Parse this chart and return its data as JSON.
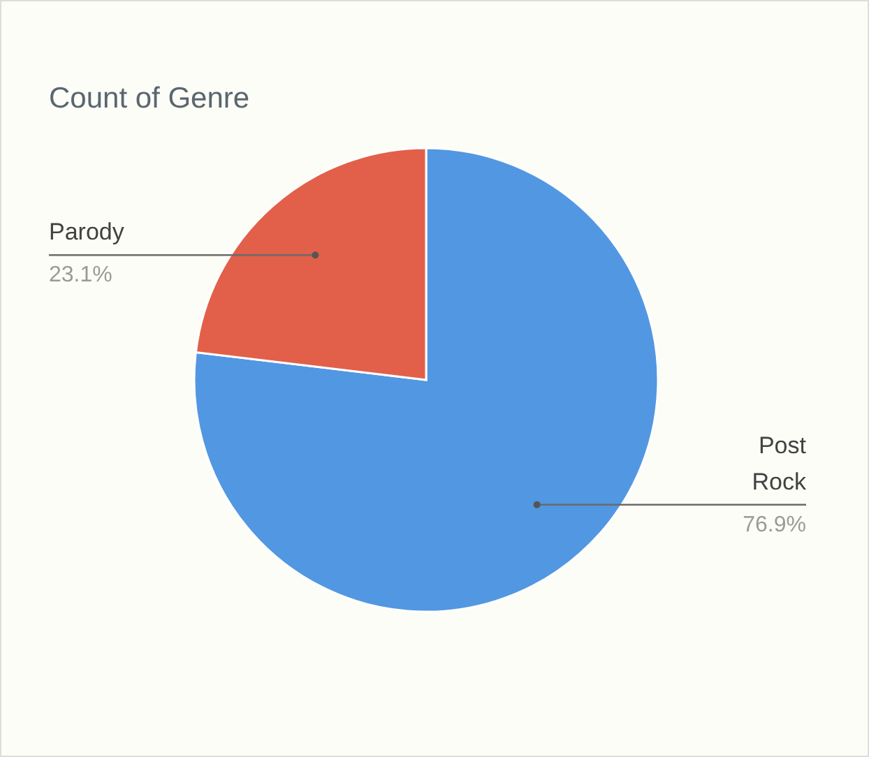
{
  "chart_data": {
    "type": "pie",
    "title": "Count of Genre",
    "categories": [
      "Post Rock",
      "Parody"
    ],
    "values": [
      76.9,
      23.1
    ],
    "colors": [
      "#5297e2",
      "#e2604a"
    ],
    "value_labels": [
      "76.9%",
      "23.1%"
    ]
  }
}
